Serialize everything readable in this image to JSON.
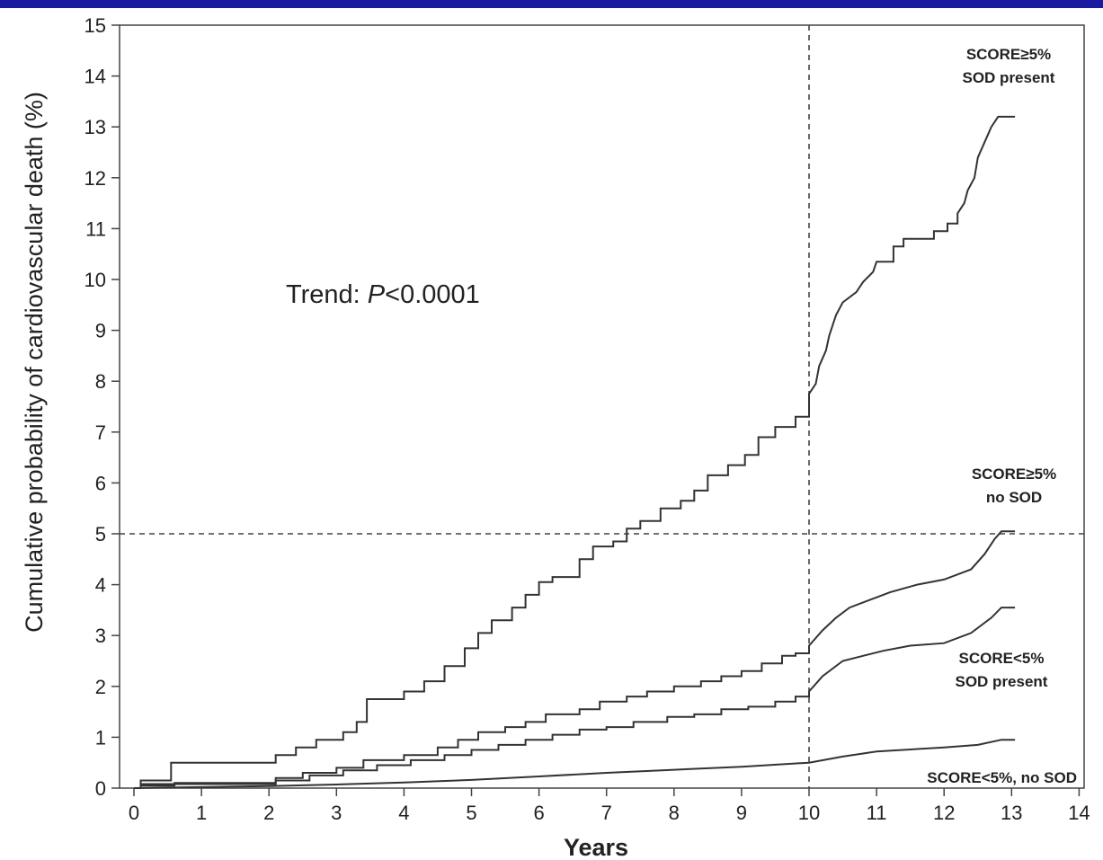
{
  "chart_data": {
    "type": "line",
    "xlabel": "Years",
    "ylabel": "Cumulative probability of cardiovascular death (%)",
    "xlim": [
      0,
      14
    ],
    "ylim": [
      0,
      15
    ],
    "x_ticks": [
      0,
      1,
      2,
      3,
      4,
      5,
      6,
      7,
      8,
      9,
      10,
      11,
      12,
      13,
      14
    ],
    "y_ticks": [
      0,
      1,
      2,
      3,
      4,
      5,
      6,
      7,
      8,
      9,
      10,
      11,
      12,
      13,
      14,
      15
    ],
    "grid": false,
    "reference_lines": [
      {
        "axis": "x",
        "value": 10,
        "style": "dashed"
      },
      {
        "axis": "y",
        "value": 5,
        "style": "dashed"
      }
    ],
    "annotation": {
      "prefix": "Trend: ",
      "italic": "P",
      "suffix": "<0.0001"
    },
    "series": [
      {
        "name": "SCORE≥5% SOD present",
        "label_lines": [
          "SCORE≥5%",
          "SOD present"
        ],
        "points": [
          [
            0,
            0
          ],
          [
            0.1,
            0
          ],
          [
            0.1,
            0.15
          ],
          [
            0.55,
            0.15
          ],
          [
            0.55,
            0.5
          ],
          [
            2.1,
            0.5
          ],
          [
            2.1,
            0.65
          ],
          [
            2.4,
            0.65
          ],
          [
            2.4,
            0.8
          ],
          [
            2.7,
            0.8
          ],
          [
            2.7,
            0.95
          ],
          [
            3.1,
            0.95
          ],
          [
            3.1,
            1.1
          ],
          [
            3.3,
            1.1
          ],
          [
            3.3,
            1.3
          ],
          [
            3.45,
            1.3
          ],
          [
            3.45,
            1.75
          ],
          [
            4.0,
            1.75
          ],
          [
            4.0,
            1.9
          ],
          [
            4.3,
            1.9
          ],
          [
            4.3,
            2.1
          ],
          [
            4.6,
            2.1
          ],
          [
            4.6,
            2.4
          ],
          [
            4.9,
            2.4
          ],
          [
            4.9,
            2.75
          ],
          [
            5.1,
            2.75
          ],
          [
            5.1,
            3.05
          ],
          [
            5.3,
            3.05
          ],
          [
            5.3,
            3.3
          ],
          [
            5.6,
            3.3
          ],
          [
            5.6,
            3.55
          ],
          [
            5.8,
            3.55
          ],
          [
            5.8,
            3.8
          ],
          [
            6.0,
            3.8
          ],
          [
            6.0,
            4.05
          ],
          [
            6.2,
            4.05
          ],
          [
            6.2,
            4.15
          ],
          [
            6.6,
            4.15
          ],
          [
            6.6,
            4.5
          ],
          [
            6.8,
            4.5
          ],
          [
            6.8,
            4.75
          ],
          [
            7.1,
            4.75
          ],
          [
            7.1,
            4.85
          ],
          [
            7.3,
            4.85
          ],
          [
            7.3,
            5.1
          ],
          [
            7.5,
            5.1
          ],
          [
            7.5,
            5.25
          ],
          [
            7.8,
            5.25
          ],
          [
            7.8,
            5.5
          ],
          [
            8.1,
            5.5
          ],
          [
            8.1,
            5.65
          ],
          [
            8.3,
            5.65
          ],
          [
            8.3,
            5.85
          ],
          [
            8.5,
            5.85
          ],
          [
            8.5,
            6.15
          ],
          [
            8.8,
            6.15
          ],
          [
            8.8,
            6.35
          ],
          [
            9.05,
            6.35
          ],
          [
            9.05,
            6.55
          ],
          [
            9.25,
            6.55
          ],
          [
            9.25,
            6.9
          ],
          [
            9.5,
            6.9
          ],
          [
            9.5,
            7.1
          ],
          [
            9.8,
            7.1
          ],
          [
            9.8,
            7.3
          ],
          [
            10.0,
            7.3
          ],
          [
            10.0,
            7.75
          ],
          [
            10.1,
            7.95
          ],
          [
            10.15,
            8.3
          ],
          [
            10.25,
            8.6
          ],
          [
            10.3,
            8.9
          ],
          [
            10.4,
            9.3
          ],
          [
            10.5,
            9.55
          ],
          [
            10.7,
            9.75
          ],
          [
            10.8,
            9.95
          ],
          [
            10.95,
            10.15
          ],
          [
            11.0,
            10.35
          ],
          [
            11.25,
            10.35
          ],
          [
            11.25,
            10.65
          ],
          [
            11.4,
            10.65
          ],
          [
            11.4,
            10.8
          ],
          [
            11.85,
            10.8
          ],
          [
            11.85,
            10.95
          ],
          [
            12.05,
            10.95
          ],
          [
            12.05,
            11.1
          ],
          [
            12.2,
            11.1
          ],
          [
            12.2,
            11.3
          ],
          [
            12.3,
            11.5
          ],
          [
            12.35,
            11.75
          ],
          [
            12.45,
            12.0
          ],
          [
            12.5,
            12.4
          ],
          [
            12.6,
            12.7
          ],
          [
            12.7,
            13.0
          ],
          [
            12.8,
            13.2
          ],
          [
            13.05,
            13.2
          ]
        ]
      },
      {
        "name": "SCORE≥5% no SOD",
        "label_lines": [
          "SCORE≥5%",
          "no SOD"
        ],
        "points": [
          [
            0,
            0
          ],
          [
            0.1,
            0
          ],
          [
            0.1,
            0.08
          ],
          [
            0.6,
            0.08
          ],
          [
            0.6,
            0.1
          ],
          [
            2.1,
            0.1
          ],
          [
            2.1,
            0.2
          ],
          [
            2.5,
            0.2
          ],
          [
            2.5,
            0.3
          ],
          [
            3.0,
            0.3
          ],
          [
            3.0,
            0.4
          ],
          [
            3.4,
            0.4
          ],
          [
            3.4,
            0.55
          ],
          [
            4.0,
            0.55
          ],
          [
            4.0,
            0.65
          ],
          [
            4.5,
            0.65
          ],
          [
            4.5,
            0.8
          ],
          [
            4.8,
            0.8
          ],
          [
            4.8,
            0.95
          ],
          [
            5.1,
            0.95
          ],
          [
            5.1,
            1.1
          ],
          [
            5.5,
            1.1
          ],
          [
            5.5,
            1.2
          ],
          [
            5.8,
            1.2
          ],
          [
            5.8,
            1.3
          ],
          [
            6.1,
            1.3
          ],
          [
            6.1,
            1.45
          ],
          [
            6.6,
            1.45
          ],
          [
            6.6,
            1.55
          ],
          [
            6.9,
            1.55
          ],
          [
            6.9,
            1.7
          ],
          [
            7.3,
            1.7
          ],
          [
            7.3,
            1.8
          ],
          [
            7.6,
            1.8
          ],
          [
            7.6,
            1.9
          ],
          [
            8.0,
            1.9
          ],
          [
            8.0,
            2.0
          ],
          [
            8.4,
            2.0
          ],
          [
            8.4,
            2.1
          ],
          [
            8.7,
            2.1
          ],
          [
            8.7,
            2.2
          ],
          [
            9.0,
            2.2
          ],
          [
            9.0,
            2.3
          ],
          [
            9.3,
            2.3
          ],
          [
            9.3,
            2.45
          ],
          [
            9.6,
            2.45
          ],
          [
            9.6,
            2.6
          ],
          [
            9.8,
            2.6
          ],
          [
            9.8,
            2.65
          ],
          [
            10.0,
            2.65
          ],
          [
            10.0,
            2.8
          ],
          [
            10.2,
            3.1
          ],
          [
            10.4,
            3.35
          ],
          [
            10.6,
            3.55
          ],
          [
            10.9,
            3.7
          ],
          [
            11.2,
            3.85
          ],
          [
            11.6,
            4.0
          ],
          [
            12.0,
            4.1
          ],
          [
            12.4,
            4.3
          ],
          [
            12.6,
            4.6
          ],
          [
            12.75,
            4.9
          ],
          [
            12.85,
            5.05
          ],
          [
            13.05,
            5.05
          ]
        ]
      },
      {
        "name": "SCORE<5% SOD present",
        "label_lines": [
          "SCORE<5%",
          "SOD present"
        ],
        "points": [
          [
            0,
            0
          ],
          [
            0.1,
            0
          ],
          [
            0.1,
            0.05
          ],
          [
            0.6,
            0.05
          ],
          [
            0.6,
            0.08
          ],
          [
            2.1,
            0.08
          ],
          [
            2.1,
            0.15
          ],
          [
            2.6,
            0.15
          ],
          [
            2.6,
            0.25
          ],
          [
            3.1,
            0.25
          ],
          [
            3.1,
            0.35
          ],
          [
            3.6,
            0.35
          ],
          [
            3.6,
            0.45
          ],
          [
            4.1,
            0.45
          ],
          [
            4.1,
            0.55
          ],
          [
            4.6,
            0.55
          ],
          [
            4.6,
            0.65
          ],
          [
            5.0,
            0.65
          ],
          [
            5.0,
            0.75
          ],
          [
            5.4,
            0.75
          ],
          [
            5.4,
            0.85
          ],
          [
            5.8,
            0.85
          ],
          [
            5.8,
            0.95
          ],
          [
            6.2,
            0.95
          ],
          [
            6.2,
            1.05
          ],
          [
            6.6,
            1.05
          ],
          [
            6.6,
            1.15
          ],
          [
            7.0,
            1.15
          ],
          [
            7.0,
            1.2
          ],
          [
            7.4,
            1.2
          ],
          [
            7.4,
            1.3
          ],
          [
            7.9,
            1.3
          ],
          [
            7.9,
            1.4
          ],
          [
            8.3,
            1.4
          ],
          [
            8.3,
            1.45
          ],
          [
            8.7,
            1.45
          ],
          [
            8.7,
            1.55
          ],
          [
            9.1,
            1.55
          ],
          [
            9.1,
            1.6
          ],
          [
            9.5,
            1.6
          ],
          [
            9.5,
            1.7
          ],
          [
            9.8,
            1.7
          ],
          [
            9.8,
            1.8
          ],
          [
            10.0,
            1.8
          ],
          [
            10.0,
            1.9
          ],
          [
            10.2,
            2.2
          ],
          [
            10.5,
            2.5
          ],
          [
            10.8,
            2.6
          ],
          [
            11.1,
            2.7
          ],
          [
            11.5,
            2.8
          ],
          [
            12.0,
            2.85
          ],
          [
            12.4,
            3.05
          ],
          [
            12.7,
            3.35
          ],
          [
            12.85,
            3.55
          ],
          [
            13.05,
            3.55
          ]
        ]
      },
      {
        "name": "SCORE<5%, no SOD",
        "label_lines": [
          "SCORE<5%, no SOD"
        ],
        "points": [
          [
            0,
            0
          ],
          [
            0.5,
            0.01
          ],
          [
            1,
            0.02
          ],
          [
            2,
            0.04
          ],
          [
            3,
            0.07
          ],
          [
            4,
            0.11
          ],
          [
            5,
            0.16
          ],
          [
            6,
            0.23
          ],
          [
            7,
            0.3
          ],
          [
            8,
            0.36
          ],
          [
            9,
            0.42
          ],
          [
            10,
            0.5
          ],
          [
            10.5,
            0.62
          ],
          [
            11,
            0.72
          ],
          [
            12,
            0.8
          ],
          [
            12.5,
            0.85
          ],
          [
            12.85,
            0.95
          ],
          [
            13.05,
            0.95
          ]
        ]
      }
    ]
  }
}
